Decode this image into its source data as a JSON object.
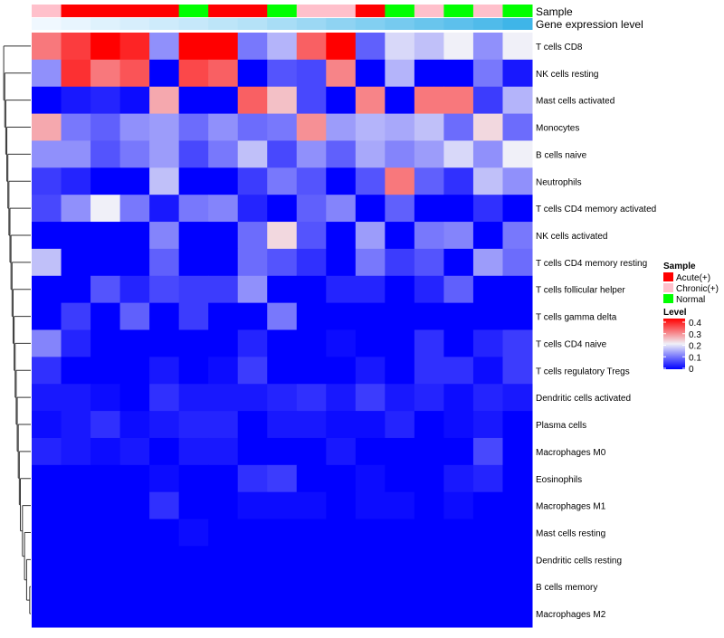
{
  "chart_data": {
    "type": "heatmap",
    "title": "",
    "annotation_titles": [
      "Sample",
      "Gene expression level"
    ],
    "columns": 17,
    "sample_groups": [
      "Chronic(+)",
      "Acute(+)",
      "Acute(+)",
      "Acute(+)",
      "Acute(+)",
      "Normal",
      "Acute(+)",
      "Acute(+)",
      "Normal",
      "Chronic(+)",
      "Chronic(+)",
      "Acute(+)",
      "Normal",
      "Chronic(+)",
      "Normal",
      "Chronic(+)",
      "Normal"
    ],
    "expression_levels": [
      0.08,
      0.1,
      0.12,
      0.14,
      0.16,
      0.18,
      0.2,
      0.22,
      0.25,
      0.28,
      0.31,
      0.34,
      0.37,
      0.4,
      0.43,
      0.46,
      0.5
    ],
    "rows": [
      "T cells CD8",
      "NK cells resting",
      "Mast cells activated",
      "Monocytes",
      "B cells naive",
      "Neutrophils",
      "T cells CD4 memory activated",
      "NK cells activated",
      "T cells CD4 memory resting",
      "T cells follicular helper",
      "T cells gamma delta",
      "T cells CD4 naive",
      "T cells regulatory  Tregs",
      "Dendritic cells activated",
      "Plasma cells",
      "Macrophages M0",
      "Eosinophils",
      "Macrophages M1",
      "Mast cells resting",
      "Dendritic cells resting",
      "B cells memory",
      "Macrophages M2"
    ],
    "values": [
      [
        0.3,
        0.35,
        0.4,
        0.37,
        0.12,
        0.4,
        0.4,
        0.1,
        0.15,
        0.32,
        0.4,
        0.08,
        0.18,
        0.16,
        0.2,
        0.12,
        0.2
      ],
      [
        0.12,
        0.36,
        0.3,
        0.33,
        0.0,
        0.34,
        0.32,
        0.0,
        0.07,
        0.06,
        0.29,
        0.0,
        0.15,
        0.0,
        0.0,
        0.1,
        0.02
      ],
      [
        0.0,
        0.02,
        0.03,
        0.01,
        0.26,
        0.0,
        0.0,
        0.32,
        0.24,
        0.06,
        0.0,
        0.29,
        0.0,
        0.3,
        0.3,
        0.05,
        0.15
      ],
      [
        0.26,
        0.1,
        0.08,
        0.12,
        0.13,
        0.09,
        0.12,
        0.09,
        0.1,
        0.28,
        0.13,
        0.15,
        0.14,
        0.16,
        0.09,
        0.22,
        0.09
      ],
      [
        0.12,
        0.12,
        0.07,
        0.1,
        0.13,
        0.06,
        0.1,
        0.16,
        0.06,
        0.12,
        0.08,
        0.14,
        0.11,
        0.13,
        0.18,
        0.12,
        0.2
      ],
      [
        0.05,
        0.03,
        0.0,
        0.0,
        0.16,
        0.0,
        0.0,
        0.05,
        0.1,
        0.07,
        0.0,
        0.07,
        0.3,
        0.08,
        0.04,
        0.16,
        0.12
      ],
      [
        0.06,
        0.12,
        0.2,
        0.1,
        0.02,
        0.1,
        0.11,
        0.03,
        0.0,
        0.08,
        0.11,
        0.0,
        0.08,
        0.0,
        0.0,
        0.04,
        0.0
      ],
      [
        0.0,
        0.0,
        0.0,
        0.0,
        0.11,
        0.0,
        0.0,
        0.09,
        0.22,
        0.07,
        0.0,
        0.13,
        0.0,
        0.1,
        0.11,
        0.0,
        0.1
      ],
      [
        0.16,
        0.0,
        0.0,
        0.0,
        0.08,
        0.0,
        0.0,
        0.09,
        0.07,
        0.04,
        0.0,
        0.1,
        0.05,
        0.07,
        0.0,
        0.13,
        0.09
      ],
      [
        0.0,
        0.0,
        0.07,
        0.03,
        0.06,
        0.05,
        0.05,
        0.12,
        0.0,
        0.0,
        0.03,
        0.03,
        0.0,
        0.03,
        0.08,
        0.0,
        0.0
      ],
      [
        0.0,
        0.05,
        0.0,
        0.08,
        0.0,
        0.05,
        0.0,
        0.0,
        0.1,
        0.0,
        0.0,
        0.0,
        0.0,
        0.0,
        0.0,
        0.0,
        0.0
      ],
      [
        0.11,
        0.03,
        0.0,
        0.0,
        0.0,
        0.0,
        0.0,
        0.03,
        0.0,
        0.0,
        0.01,
        0.0,
        0.0,
        0.04,
        0.0,
        0.03,
        0.05
      ],
      [
        0.04,
        0.0,
        0.0,
        0.0,
        0.02,
        0.0,
        0.01,
        0.05,
        0.0,
        0.0,
        0.0,
        0.02,
        0.0,
        0.04,
        0.04,
        0.01,
        0.05
      ],
      [
        0.02,
        0.02,
        0.01,
        0.0,
        0.04,
        0.02,
        0.02,
        0.02,
        0.03,
        0.04,
        0.02,
        0.05,
        0.02,
        0.03,
        0.01,
        0.03,
        0.02
      ],
      [
        0.01,
        0.02,
        0.04,
        0.01,
        0.02,
        0.03,
        0.03,
        0.0,
        0.02,
        0.02,
        0.01,
        0.01,
        0.03,
        0.0,
        0.01,
        0.02,
        0.0
      ],
      [
        0.03,
        0.02,
        0.01,
        0.02,
        0.0,
        0.02,
        0.02,
        0.0,
        0.0,
        0.0,
        0.02,
        0.0,
        0.0,
        0.0,
        0.0,
        0.06,
        0.0
      ],
      [
        0.0,
        0.0,
        0.0,
        0.0,
        0.01,
        0.0,
        0.0,
        0.04,
        0.05,
        0.0,
        0.0,
        0.01,
        0.0,
        0.0,
        0.02,
        0.03,
        0.0
      ],
      [
        0.0,
        0.0,
        0.0,
        0.0,
        0.04,
        0.0,
        0.0,
        0.01,
        0.01,
        0.01,
        0.0,
        0.01,
        0.01,
        0.0,
        0.01,
        0.0,
        0.0
      ],
      [
        0.0,
        0.0,
        0.0,
        0.0,
        0.0,
        0.01,
        0.0,
        0.0,
        0.0,
        0.0,
        0.0,
        0.0,
        0.0,
        0.0,
        0.0,
        0.0,
        0.0
      ],
      [
        0.0,
        0.0,
        0.0,
        0.0,
        0.0,
        0.0,
        0.0,
        0.0,
        0.0,
        0.0,
        0.0,
        0.0,
        0.0,
        0.0,
        0.0,
        0.0,
        0.0
      ],
      [
        0.0,
        0.0,
        0.0,
        0.0,
        0.0,
        0.0,
        0.0,
        0.0,
        0.0,
        0.0,
        0.0,
        0.0,
        0.0,
        0.0,
        0.0,
        0.0,
        0.0
      ],
      [
        0.0,
        0.0,
        0.0,
        0.0,
        0.0,
        0.0,
        0.0,
        0.0,
        0.0,
        0.0,
        0.0,
        0.0,
        0.0,
        0.0,
        0.0,
        0.0,
        0.0
      ]
    ],
    "color_scale": {
      "min": 0,
      "mid": 0.2,
      "max": 0.4,
      "low_color": "#0000ff",
      "mid_color": "#f0f0f8",
      "high_color": "#ff0000"
    },
    "legend": {
      "sample": {
        "title": "Sample",
        "items": [
          {
            "label": "Acute(+)",
            "color": "#ff0000"
          },
          {
            "label": "Chronic(+)",
            "color": "#ffc0cb"
          },
          {
            "label": "Normal",
            "color": "#00ff00"
          }
        ]
      },
      "level": {
        "title": "Level",
        "ticks": [
          "0.4",
          "0.3",
          "0.2",
          "0.1",
          "0"
        ],
        "tick_values": [
          0.4,
          0.3,
          0.2,
          0.1,
          0
        ]
      }
    },
    "gene_expression_colors": {
      "low": "#f0f8ff",
      "high": "#3fb5e8"
    },
    "legend_position": "right"
  }
}
